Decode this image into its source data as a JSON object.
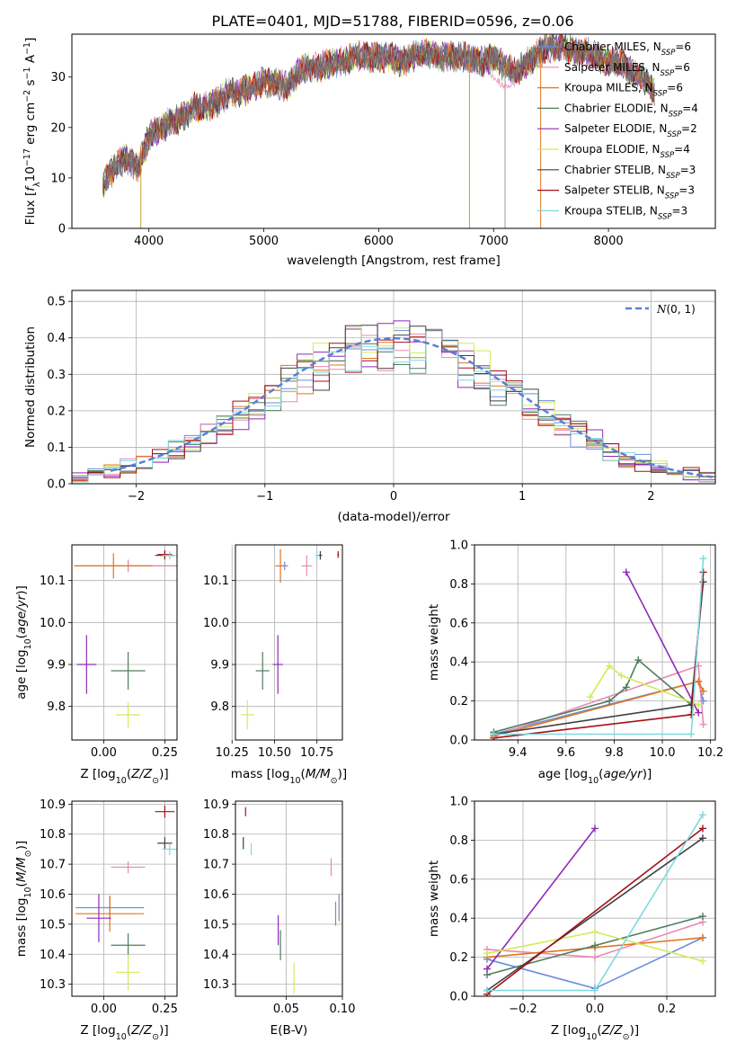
{
  "figure": {
    "title": "PLATE=0401, MJD=51788, FIBERID=0596, z=0.06"
  },
  "models": [
    {
      "name": "Chabrier MILES",
      "n_ssp": "6",
      "color": "#6a8fdc"
    },
    {
      "name": "Salpeter MILES",
      "n_ssp": "6",
      "color": "#e88ab0"
    },
    {
      "name": "Kroupa MILES",
      "n_ssp": "6",
      "color": "#e0761f"
    },
    {
      "name": "Chabrier ELODIE",
      "n_ssp": "4",
      "color": "#4f7d5c"
    },
    {
      "name": "Salpeter ELODIE",
      "n_ssp": "2",
      "color": "#8e2bb8"
    },
    {
      "name": "Kroupa ELODIE",
      "n_ssp": "4",
      "color": "#d1ec5a"
    },
    {
      "name": "Chabrier STELIB",
      "n_ssp": "3",
      "color": "#404040"
    },
    {
      "name": "Salpeter STELIB",
      "n_ssp": "3",
      "color": "#a50f15"
    },
    {
      "name": "Kroupa STELIB",
      "n_ssp": "3",
      "color": "#7fd8df"
    }
  ],
  "chart_data": [
    {
      "id": "spectrum",
      "type": "line",
      "xlabel": "wavelength [Angstrom, rest frame]",
      "ylabel": "Flux [f_λ10^-17 erg cm^-2 s^-1 A^-1]",
      "xlim": [
        3330,
        8930
      ],
      "ylim": [
        0,
        38.5
      ],
      "xticks": [
        4000,
        5000,
        6000,
        7000,
        8000
      ],
      "yticks": [
        0,
        10,
        20,
        30
      ],
      "legend": "right",
      "data_continuum": {
        "x": [
          3600,
          3700,
          3800,
          3900,
          4000,
          4100,
          4200,
          4300,
          4400,
          4500,
          4600,
          4700,
          4800,
          4900,
          5000,
          5100,
          5200,
          5300,
          5400,
          5500,
          5600,
          5700,
          5800,
          5900,
          6000,
          6100,
          6200,
          6300,
          6400,
          6500,
          6600,
          6700,
          6800,
          6900,
          7000,
          7100,
          7200,
          7300,
          7400,
          7500,
          7600,
          7700,
          7800,
          7900,
          8000,
          8100,
          8200,
          8300,
          8400
        ],
        "y": [
          9,
          12,
          14,
          12,
          18,
          20,
          21,
          22,
          24,
          24,
          25,
          27,
          27,
          28,
          29,
          29,
          28,
          31,
          32,
          32,
          33,
          33,
          34,
          34,
          34,
          34,
          33,
          34,
          35,
          34,
          34,
          34,
          34,
          33,
          34,
          32,
          31,
          33,
          35,
          36,
          36,
          35,
          35,
          34,
          33,
          33,
          31,
          30,
          27
        ]
      },
      "salpeter_miles_dip": {
        "x": [
          6900,
          7000,
          7100,
          7200,
          7300
        ],
        "y": [
          33,
          30,
          28,
          29,
          32
        ]
      },
      "spikes_down": [
        3930,
        6790,
        7100,
        7410
      ]
    },
    {
      "id": "residuals",
      "type": "line",
      "xlabel": "(data-model)/error",
      "ylabel": "Normed distribution",
      "xlim": [
        -2.5,
        2.5
      ],
      "ylim": [
        0,
        0.53
      ],
      "xticks": [
        -2,
        -1,
        0,
        1,
        2
      ],
      "yticks": [
        0.0,
        0.1,
        0.2,
        0.3,
        0.4,
        0.5
      ],
      "grid": true,
      "legend": "top-right",
      "reference_label": "N(0,1)",
      "reference_color": "#5b7fd6"
    },
    {
      "id": "age-vs-Z",
      "type": "scatter",
      "xlabel": "Z [log10(Z/Z⊙)]",
      "ylabel": "age [log10(age/yr)]",
      "xlim": [
        -0.13,
        0.3
      ],
      "ylim": [
        9.72,
        10.185
      ],
      "xticks": [
        0.0,
        0.25
      ],
      "yticks": [
        9.8,
        9.9,
        10.0,
        10.1
      ],
      "grid": true,
      "points": [
        {
          "m": 0,
          "x": 0.1,
          "y": 10.135,
          "xe": 0.22,
          "ye": 0.012
        },
        {
          "m": 1,
          "x": 0.1,
          "y": 10.135,
          "xe": 0.2,
          "ye": 0.015
        },
        {
          "m": 2,
          "x": 0.04,
          "y": 10.135,
          "xe": 0.16,
          "ye": 0.03
        },
        {
          "m": 3,
          "x": 0.1,
          "y": 9.885,
          "xe": 0.07,
          "ye": 0.045
        },
        {
          "m": 4,
          "x": -0.07,
          "y": 9.9,
          "xe": 0.04,
          "ye": 0.07
        },
        {
          "m": 5,
          "x": 0.1,
          "y": 9.78,
          "xe": 0.05,
          "ye": 0.03
        },
        {
          "m": 6,
          "x": 0.25,
          "y": 10.16,
          "xe": 0.04,
          "ye": 0.01
        },
        {
          "m": 7,
          "x": 0.25,
          "y": 10.162,
          "xe": 0.03,
          "ye": 0.01
        },
        {
          "m": 8,
          "x": 0.27,
          "y": 10.16,
          "xe": 0.03,
          "ye": 0.01
        }
      ]
    },
    {
      "id": "age-vs-mass",
      "type": "scatter",
      "xlabel": "mass [log10(M/M⊙)]",
      "ylabel": "",
      "xlim": [
        10.27,
        10.9
      ],
      "ylim": [
        9.72,
        10.185
      ],
      "xticks": [
        10.25,
        10.5,
        10.75
      ],
      "yticks": [
        9.8,
        9.9,
        10.0,
        10.1
      ],
      "grid": true,
      "points": [
        {
          "m": 0,
          "x": 10.56,
          "y": 10.135,
          "xe": 0.02,
          "ye": 0.01
        },
        {
          "m": 1,
          "x": 10.69,
          "y": 10.135,
          "xe": 0.03,
          "ye": 0.025
        },
        {
          "m": 2,
          "x": 10.535,
          "y": 10.135,
          "xe": 0.03,
          "ye": 0.04
        },
        {
          "m": 3,
          "x": 10.43,
          "y": 9.885,
          "xe": 0.04,
          "ye": 0.045
        },
        {
          "m": 4,
          "x": 10.52,
          "y": 9.9,
          "xe": 0.03,
          "ye": 0.07
        },
        {
          "m": 5,
          "x": 10.34,
          "y": 9.78,
          "xe": 0.04,
          "ye": 0.035
        },
        {
          "m": 6,
          "x": 10.77,
          "y": 10.16,
          "xe": 0.01,
          "ye": 0.01
        },
        {
          "m": 7,
          "x": 10.875,
          "y": 10.162,
          "xe": 0.005,
          "ye": 0.008
        },
        {
          "m": 8,
          "x": 10.75,
          "y": 10.16,
          "xe": 0.01,
          "ye": 0.01
        }
      ]
    },
    {
      "id": "weight-vs-age",
      "type": "line",
      "xlabel": "age [log10(age/yr)]",
      "ylabel": "mass weight",
      "xlim": [
        9.22,
        10.22
      ],
      "ylim": [
        0,
        1.0
      ],
      "xticks": [
        9.4,
        9.6,
        9.8,
        10.0,
        10.2
      ],
      "yticks": [
        0.0,
        0.2,
        0.4,
        0.6,
        0.8,
        1.0
      ],
      "grid": true,
      "series": [
        {
          "m": 0,
          "x": [
            9.3,
            10.15,
            10.17
          ],
          "y": [
            0.03,
            0.3,
            0.2
          ]
        },
        {
          "m": 1,
          "x": [
            9.3,
            10.15,
            10.17
          ],
          "y": [
            0.02,
            0.38,
            0.08
          ]
        },
        {
          "m": 2,
          "x": [
            9.3,
            10.15,
            10.17
          ],
          "y": [
            0.02,
            0.3,
            0.25
          ]
        },
        {
          "m": 3,
          "x": [
            9.3,
            9.78,
            9.85,
            9.9,
            10.12
          ],
          "y": [
            0.04,
            0.2,
            0.27,
            0.41,
            0.18
          ]
        },
        {
          "m": 4,
          "x": [
            9.85,
            10.15
          ],
          "y": [
            0.86,
            0.14
          ]
        },
        {
          "m": 5,
          "x": [
            9.7,
            9.78,
            9.83,
            10.15
          ],
          "y": [
            0.22,
            0.38,
            0.33,
            0.18
          ]
        },
        {
          "m": 6,
          "x": [
            9.3,
            10.12,
            10.17
          ],
          "y": [
            0.03,
            0.18,
            0.81
          ]
        },
        {
          "m": 7,
          "x": [
            9.3,
            10.12,
            10.17
          ],
          "y": [
            0.01,
            0.13,
            0.86
          ]
        },
        {
          "m": 8,
          "x": [
            9.3,
            10.12,
            10.17
          ],
          "y": [
            0.03,
            0.03,
            0.93
          ]
        }
      ]
    },
    {
      "id": "mass-vs-Z",
      "type": "scatter",
      "xlabel": "Z [log10(Z/Z⊙)]",
      "ylabel": "mass [log10(M/M⊙)]",
      "xlim": [
        -0.13,
        0.3
      ],
      "ylim": [
        10.26,
        10.91
      ],
      "xticks": [
        0.0,
        0.25
      ],
      "yticks": [
        10.3,
        10.4,
        10.5,
        10.6,
        10.7,
        10.8,
        10.9
      ],
      "grid": true,
      "points": [
        {
          "m": 0,
          "x": 0.025,
          "y": 10.555,
          "xe": 0.14,
          "ye": 0.04
        },
        {
          "m": 1,
          "x": 0.1,
          "y": 10.69,
          "xe": 0.07,
          "ye": 0.02
        },
        {
          "m": 2,
          "x": 0.025,
          "y": 10.535,
          "xe": 0.14,
          "ye": 0.06
        },
        {
          "m": 3,
          "x": 0.1,
          "y": 10.43,
          "xe": 0.07,
          "ye": 0.04
        },
        {
          "m": 4,
          "x": -0.02,
          "y": 10.52,
          "xe": 0.05,
          "ye": 0.08
        },
        {
          "m": 5,
          "x": 0.1,
          "y": 10.34,
          "xe": 0.05,
          "ye": 0.06
        },
        {
          "m": 6,
          "x": 0.25,
          "y": 10.77,
          "xe": 0.03,
          "ye": 0.02
        },
        {
          "m": 7,
          "x": 0.25,
          "y": 10.875,
          "xe": 0.04,
          "ye": 0.02
        },
        {
          "m": 8,
          "x": 0.27,
          "y": 10.75,
          "xe": 0.03,
          "ye": 0.02
        }
      ]
    },
    {
      "id": "mass-vs-EBV",
      "type": "scatter",
      "xlabel": "E(B-V)",
      "ylabel": "",
      "xlim": [
        0.005,
        0.1
      ],
      "ylim": [
        10.26,
        10.91
      ],
      "xticks": [
        0.05,
        0.1
      ],
      "yticks": [
        10.3,
        10.4,
        10.5,
        10.6,
        10.7,
        10.8,
        10.9
      ],
      "grid": true,
      "points": [
        {
          "m": 0,
          "x": 0.097,
          "y": 10.555,
          "xe": 0,
          "ye": 0.045
        },
        {
          "m": 1,
          "x": 0.09,
          "y": 10.69,
          "xe": 0,
          "ye": 0.03
        },
        {
          "m": 2,
          "x": 0.094,
          "y": 10.535,
          "xe": 0,
          "ye": 0.04
        },
        {
          "m": 3,
          "x": 0.045,
          "y": 10.43,
          "xe": 0,
          "ye": 0.05
        },
        {
          "m": 4,
          "x": 0.043,
          "y": 10.48,
          "xe": 0,
          "ye": 0.05
        },
        {
          "m": 5,
          "x": 0.057,
          "y": 10.32,
          "xe": 0,
          "ye": 0.05
        },
        {
          "m": 6,
          "x": 0.012,
          "y": 10.77,
          "xe": 0,
          "ye": 0.02
        },
        {
          "m": 7,
          "x": 0.014,
          "y": 10.875,
          "xe": 0,
          "ye": 0.015
        },
        {
          "m": 8,
          "x": 0.019,
          "y": 10.75,
          "xe": 0,
          "ye": 0.02
        }
      ]
    },
    {
      "id": "weight-vs-Z",
      "type": "line",
      "xlabel": "Z [log10(Z/Z⊙)]",
      "ylabel": "mass weight",
      "xlim": [
        -0.335,
        0.335
      ],
      "ylim": [
        0,
        1.0
      ],
      "xticks": [
        -0.2,
        0.0,
        0.2
      ],
      "yticks": [
        0.0,
        0.2,
        0.4,
        0.6,
        0.8,
        1.0
      ],
      "grid": true,
      "series": [
        {
          "m": 0,
          "x": [
            -0.3,
            0.0,
            0.3
          ],
          "y": [
            0.19,
            0.04,
            0.3
          ]
        },
        {
          "m": 1,
          "x": [
            -0.3,
            0.0,
            0.3
          ],
          "y": [
            0.24,
            0.2,
            0.38
          ]
        },
        {
          "m": 2,
          "x": [
            -0.3,
            0.0,
            0.3
          ],
          "y": [
            0.2,
            0.25,
            0.3
          ]
        },
        {
          "m": 3,
          "x": [
            -0.3,
            0.0,
            0.3
          ],
          "y": [
            0.11,
            0.26,
            0.41
          ]
        },
        {
          "m": 4,
          "x": [
            -0.3,
            0.0
          ],
          "y": [
            0.14,
            0.86
          ]
        },
        {
          "m": 5,
          "x": [
            -0.3,
            0.0,
            0.3
          ],
          "y": [
            0.22,
            0.33,
            0.18
          ]
        },
        {
          "m": 6,
          "x": [
            -0.3,
            0.3
          ],
          "y": [
            0.03,
            0.81
          ]
        },
        {
          "m": 7,
          "x": [
            -0.3,
            0.3
          ],
          "y": [
            0.01,
            0.86
          ]
        },
        {
          "m": 8,
          "x": [
            -0.3,
            0.0,
            0.3
          ],
          "y": [
            0.03,
            0.03,
            0.93
          ]
        }
      ]
    }
  ]
}
